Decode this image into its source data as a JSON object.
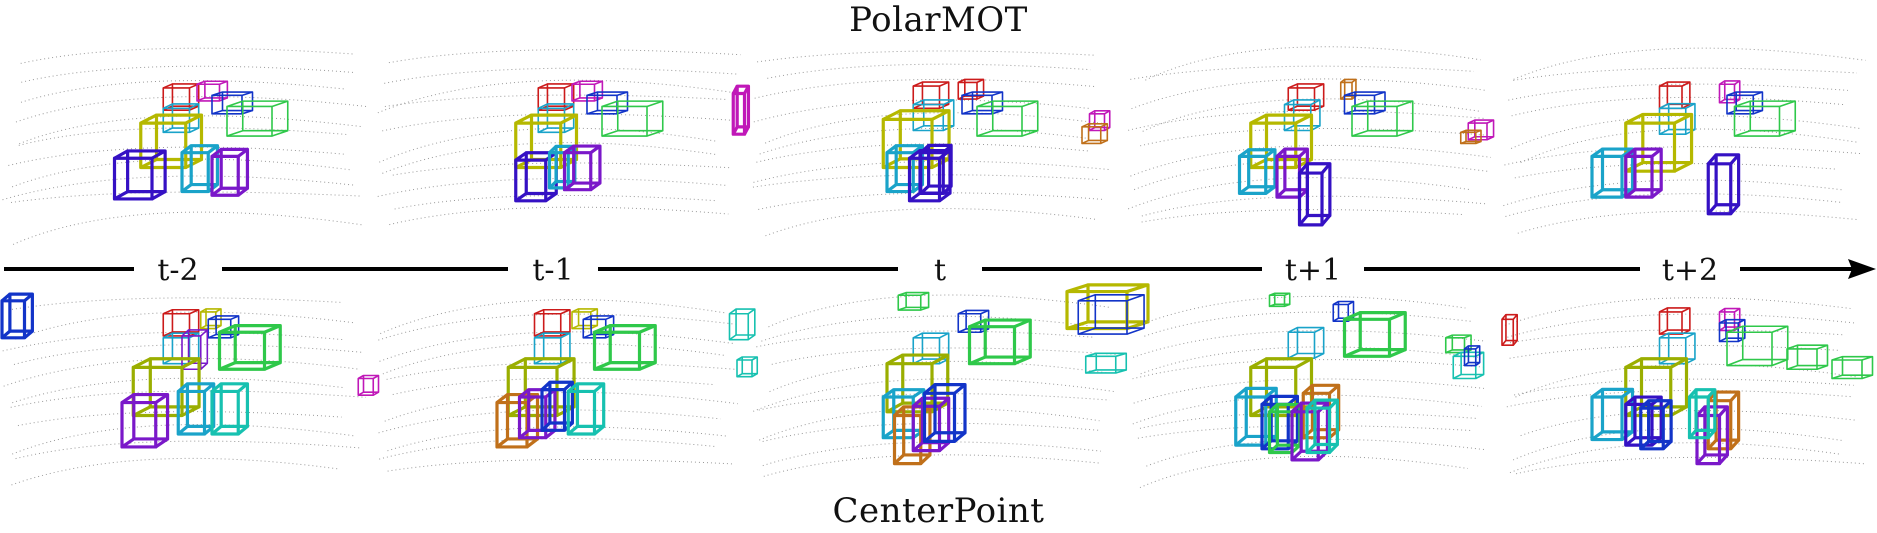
{
  "titles": {
    "top": "PolarMOT",
    "bottom": "CenterPoint"
  },
  "timeline": {
    "labels": [
      "t-2",
      "t-1",
      "t",
      "t+1",
      "t+2"
    ]
  },
  "colors": {
    "axis": "#000000",
    "points": "#9a9a9a",
    "yellow": "#b5b800",
    "olive": "#9aae00",
    "cyan": "#1aa3c9",
    "teal": "#17c1b0",
    "green": "#2fc84a",
    "purple": "#7a18c9",
    "violet": "#8b1fd0",
    "indigo": "#3511c4",
    "blue": "#1234c8",
    "red": "#cc1b1b",
    "magenta": "#c018b8",
    "orange": "#c0701a"
  },
  "frames": {
    "top": [
      [
        [
          "red",
          0.43,
          0.27,
          0.07,
          0.12
        ],
        [
          "magenta",
          0.52,
          0.25,
          0.06,
          0.09
        ],
        [
          "blue",
          0.56,
          0.31,
          0.08,
          0.1
        ],
        [
          "green",
          0.6,
          0.37,
          0.12,
          0.16
        ],
        [
          "cyan",
          0.43,
          0.38,
          0.07,
          0.13
        ],
        [
          "yellow",
          0.37,
          0.46,
          0.12,
          0.24
        ],
        [
          "indigo",
          0.3,
          0.65,
          0.1,
          0.22
        ],
        [
          "cyan",
          0.48,
          0.62,
          0.07,
          0.21
        ],
        [
          "purple",
          0.56,
          0.64,
          0.07,
          0.21
        ]
      ],
      [
        [
          "red",
          0.43,
          0.27,
          0.07,
          0.12
        ],
        [
          "magenta",
          0.52,
          0.25,
          0.06,
          0.09
        ],
        [
          "blue",
          0.56,
          0.31,
          0.08,
          0.1
        ],
        [
          "green",
          0.6,
          0.37,
          0.12,
          0.16
        ],
        [
          "cyan",
          0.43,
          0.38,
          0.07,
          0.13
        ],
        [
          "yellow",
          0.37,
          0.46,
          0.12,
          0.24
        ],
        [
          "indigo",
          0.37,
          0.66,
          0.08,
          0.22
        ],
        [
          "cyan",
          0.46,
          0.62,
          0.05,
          0.19
        ],
        [
          "purple",
          0.5,
          0.62,
          0.07,
          0.2
        ],
        [
          "magenta",
          0.95,
          0.3,
          0.03,
          0.22
        ]
      ],
      [
        [
          "red",
          0.43,
          0.26,
          0.07,
          0.12
        ],
        [
          "red",
          0.55,
          0.24,
          0.05,
          0.09
        ],
        [
          "blue",
          0.56,
          0.31,
          0.08,
          0.1
        ],
        [
          "green",
          0.6,
          0.37,
          0.12,
          0.16
        ],
        [
          "cyan",
          0.43,
          0.36,
          0.08,
          0.14
        ],
        [
          "yellow",
          0.35,
          0.44,
          0.13,
          0.26
        ],
        [
          "cyan",
          0.36,
          0.62,
          0.07,
          0.21
        ],
        [
          "indigo",
          0.42,
          0.65,
          0.08,
          0.23
        ],
        [
          "indigo",
          0.45,
          0.62,
          0.06,
          0.22
        ],
        [
          "magenta",
          0.9,
          0.41,
          0.04,
          0.09
        ],
        [
          "orange",
          0.88,
          0.48,
          0.05,
          0.09
        ]
      ],
      [
        [
          "red",
          0.43,
          0.27,
          0.07,
          0.12
        ],
        [
          "orange",
          0.57,
          0.24,
          0.03,
          0.09
        ],
        [
          "blue",
          0.58,
          0.31,
          0.08,
          0.1
        ],
        [
          "green",
          0.6,
          0.37,
          0.12,
          0.16
        ],
        [
          "cyan",
          0.42,
          0.36,
          0.07,
          0.14
        ],
        [
          "yellow",
          0.33,
          0.46,
          0.12,
          0.24
        ],
        [
          "cyan",
          0.3,
          0.64,
          0.07,
          0.2
        ],
        [
          "purple",
          0.4,
          0.64,
          0.06,
          0.22
        ],
        [
          "indigo",
          0.46,
          0.73,
          0.06,
          0.28
        ],
        [
          "magenta",
          0.91,
          0.46,
          0.05,
          0.09
        ],
        [
          "orange",
          0.89,
          0.51,
          0.04,
          0.06
        ]
      ],
      [
        [
          "red",
          0.42,
          0.26,
          0.06,
          0.12
        ],
        [
          "magenta",
          0.58,
          0.25,
          0.04,
          0.1
        ],
        [
          "blue",
          0.6,
          0.31,
          0.07,
          0.1
        ],
        [
          "green",
          0.62,
          0.37,
          0.12,
          0.16
        ],
        [
          "cyan",
          0.42,
          0.38,
          0.07,
          0.14
        ],
        [
          "yellow",
          0.33,
          0.46,
          0.13,
          0.26
        ],
        [
          "cyan",
          0.24,
          0.64,
          0.08,
          0.22
        ],
        [
          "purple",
          0.33,
          0.64,
          0.07,
          0.22
        ],
        [
          "indigo",
          0.55,
          0.68,
          0.06,
          0.27
        ]
      ]
    ],
    "bottom": [
      [
        [
          "red",
          0.43,
          0.15,
          0.07,
          0.12
        ],
        [
          "yellow",
          0.53,
          0.14,
          0.04,
          0.09
        ],
        [
          "blue",
          0.55,
          0.18,
          0.06,
          0.1
        ],
        [
          "green",
          0.58,
          0.25,
          0.12,
          0.2
        ],
        [
          "cyan",
          0.43,
          0.28,
          0.07,
          0.14
        ],
        [
          "purple",
          0.48,
          0.27,
          0.05,
          0.18
        ],
        [
          "olive",
          0.35,
          0.44,
          0.13,
          0.26
        ],
        [
          "purple",
          0.32,
          0.63,
          0.09,
          0.24
        ],
        [
          "cyan",
          0.47,
          0.57,
          0.07,
          0.23
        ],
        [
          "teal",
          0.56,
          0.57,
          0.07,
          0.23
        ],
        [
          "blue",
          0.0,
          0.08,
          0.06,
          0.2
        ],
        [
          "magenta",
          0.95,
          0.5,
          0.04,
          0.09
        ]
      ],
      [
        [
          "red",
          0.42,
          0.15,
          0.07,
          0.12
        ],
        [
          "yellow",
          0.52,
          0.14,
          0.05,
          0.09
        ],
        [
          "blue",
          0.55,
          0.18,
          0.06,
          0.1
        ],
        [
          "green",
          0.58,
          0.25,
          0.12,
          0.2
        ],
        [
          "cyan",
          0.42,
          0.28,
          0.07,
          0.14
        ],
        [
          "olive",
          0.35,
          0.44,
          0.13,
          0.26
        ],
        [
          "orange",
          0.32,
          0.63,
          0.08,
          0.24
        ],
        [
          "purple",
          0.38,
          0.6,
          0.07,
          0.22
        ],
        [
          "blue",
          0.44,
          0.56,
          0.06,
          0.22
        ],
        [
          "teal",
          0.51,
          0.57,
          0.07,
          0.23
        ],
        [
          "teal",
          0.94,
          0.15,
          0.05,
          0.14
        ],
        [
          "teal",
          0.96,
          0.4,
          0.04,
          0.09
        ]
      ],
      [
        [
          "green",
          0.39,
          0.05,
          0.06,
          0.08
        ],
        [
          "blue",
          0.55,
          0.15,
          0.06,
          0.1
        ],
        [
          "green",
          0.58,
          0.22,
          0.12,
          0.2
        ],
        [
          "cyan",
          0.43,
          0.28,
          0.07,
          0.14
        ],
        [
          "olive",
          0.36,
          0.42,
          0.12,
          0.26
        ],
        [
          "cyan",
          0.35,
          0.6,
          0.08,
          0.22
        ],
        [
          "orange",
          0.38,
          0.7,
          0.07,
          0.26
        ],
        [
          "purple",
          0.43,
          0.65,
          0.07,
          0.24
        ],
        [
          "blue",
          0.46,
          0.58,
          0.08,
          0.26
        ],
        [
          "yellow",
          0.84,
          0.03,
          0.16,
          0.2
        ],
        [
          "blue",
          0.87,
          0.08,
          0.13,
          0.18
        ],
        [
          "teal",
          0.89,
          0.38,
          0.08,
          0.09
        ]
      ],
      [
        [
          "green",
          0.38,
          0.05,
          0.04,
          0.06
        ],
        [
          "blue",
          0.55,
          0.1,
          0.04,
          0.09
        ],
        [
          "green",
          0.58,
          0.18,
          0.12,
          0.2
        ],
        [
          "cyan",
          0.43,
          0.25,
          0.07,
          0.14
        ],
        [
          "olive",
          0.33,
          0.44,
          0.12,
          0.26
        ],
        [
          "cyan",
          0.29,
          0.6,
          0.08,
          0.26
        ],
        [
          "blue",
          0.36,
          0.64,
          0.07,
          0.24
        ],
        [
          "green",
          0.38,
          0.68,
          0.06,
          0.22
        ],
        [
          "orange",
          0.47,
          0.58,
          0.07,
          0.24
        ],
        [
          "purple",
          0.44,
          0.68,
          0.07,
          0.26
        ],
        [
          "teal",
          0.48,
          0.66,
          0.06,
          0.24
        ],
        [
          "green",
          0.85,
          0.28,
          0.05,
          0.08
        ],
        [
          "teal",
          0.87,
          0.38,
          0.06,
          0.12
        ],
        [
          "blue",
          0.9,
          0.34,
          0.03,
          0.09
        ]
      ],
      [
        [
          "red",
          0.42,
          0.14,
          0.06,
          0.12
        ],
        [
          "magenta",
          0.58,
          0.14,
          0.04,
          0.1
        ],
        [
          "blue",
          0.58,
          0.2,
          0.05,
          0.1
        ],
        [
          "green",
          0.6,
          0.25,
          0.12,
          0.18
        ],
        [
          "cyan",
          0.42,
          0.28,
          0.07,
          0.14
        ],
        [
          "olive",
          0.33,
          0.44,
          0.12,
          0.26
        ],
        [
          "cyan",
          0.24,
          0.6,
          0.08,
          0.23
        ],
        [
          "indigo",
          0.33,
          0.64,
          0.07,
          0.22
        ],
        [
          "blue",
          0.37,
          0.66,
          0.06,
          0.22
        ],
        [
          "orange",
          0.55,
          0.62,
          0.06,
          0.26
        ],
        [
          "purple",
          0.52,
          0.7,
          0.06,
          0.26
        ],
        [
          "teal",
          0.5,
          0.6,
          0.05,
          0.22
        ],
        [
          "green",
          0.76,
          0.34,
          0.08,
          0.11
        ],
        [
          "green",
          0.88,
          0.4,
          0.08,
          0.1
        ],
        [
          "red",
          0.0,
          0.18,
          0.03,
          0.14
        ]
      ]
    ]
  }
}
